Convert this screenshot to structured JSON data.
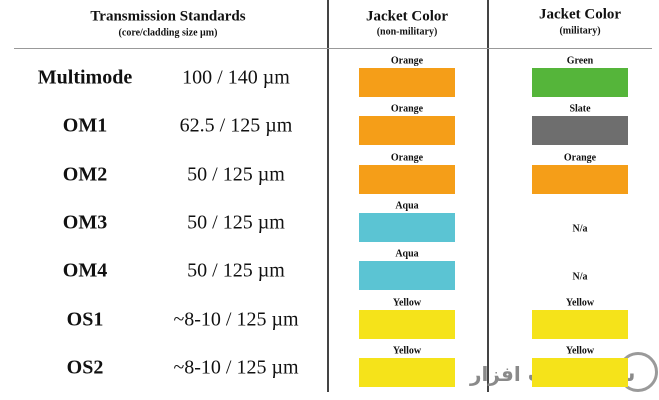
{
  "header": {
    "standards": {
      "title": "Transmission Standards",
      "subtitle": "(core/cladding size µm)"
    },
    "non_military": {
      "title": "Jacket Color",
      "subtitle": "(non-military)"
    },
    "military": {
      "title": "Jacket Color",
      "subtitle": "(military)"
    }
  },
  "rows": [
    {
      "name": "Multimode",
      "size": "100 / 140 µm",
      "non_military": {
        "label": "Orange",
        "color": "#f59e18"
      },
      "military": {
        "label": "Green",
        "color": "#55b53a"
      }
    },
    {
      "name": "OM1",
      "size": "62.5 / 125 µm",
      "non_military": {
        "label": "Orange",
        "color": "#f59e18"
      },
      "military": {
        "label": "Slate",
        "color": "#6e6e6e"
      }
    },
    {
      "name": "OM2",
      "size": "50 / 125 µm",
      "non_military": {
        "label": "Orange",
        "color": "#f59e18"
      },
      "military": {
        "label": "Orange",
        "color": "#f59e18"
      }
    },
    {
      "name": "OM3",
      "size": "50 / 125 µm",
      "non_military": {
        "label": "Aqua",
        "color": "#5bc4d3"
      },
      "military": {
        "label": "N/a"
      }
    },
    {
      "name": "OM4",
      "size": "50 / 125 µm",
      "non_military": {
        "label": "Aqua",
        "color": "#5bc4d3"
      },
      "military": {
        "label": "N/a"
      }
    },
    {
      "name": "OS1",
      "size": "~8-10 / 125 µm",
      "non_military": {
        "label": "Yellow",
        "color": "#f5e31a"
      },
      "military": {
        "label": "Yellow",
        "color": "#f5e31a"
      }
    },
    {
      "name": "OS2",
      "size": "~8-10 / 125 µm",
      "non_military": {
        "label": "Yellow",
        "color": "#f5e31a"
      },
      "military": {
        "label": "Yellow",
        "color": "#f5e31a"
      }
    }
  ],
  "watermark": "شهر سخت افزار"
}
